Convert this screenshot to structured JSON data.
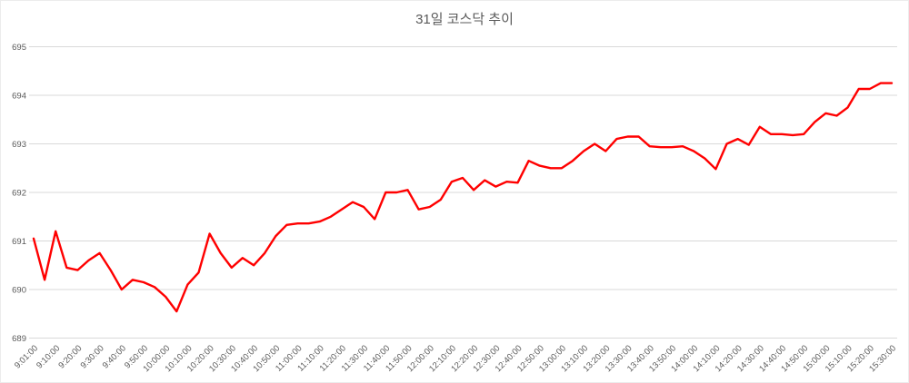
{
  "chart_data": {
    "type": "line",
    "title": "31일 코스닥 추이",
    "xlabel": "",
    "ylabel": "",
    "ylim": [
      689,
      695
    ],
    "y_ticks": [
      689,
      690,
      691,
      692,
      693,
      694,
      695
    ],
    "grid": "horizontal",
    "legend": "none",
    "gridline_color": "#d9d9d9",
    "axis_label_color": "#595959",
    "title_color": "#595959",
    "line_width": 2.4,
    "x_tick_labels": [
      "9:01:00",
      "9:10:00",
      "9:20:00",
      "9:30:00",
      "9:40:00",
      "9:50:00",
      "10:00:00",
      "10:10:00",
      "10:20:00",
      "10:30:00",
      "10:40:00",
      "10:50:00",
      "11:00:00",
      "11:10:00",
      "11:20:00",
      "11:30:00",
      "11:40:00",
      "11:50:00",
      "12:00:00",
      "12:10:00",
      "12:20:00",
      "12:30:00",
      "12:40:00",
      "12:50:00",
      "13:00:00",
      "13:10:00",
      "13:20:00",
      "13:30:00",
      "13:40:00",
      "13:50:00",
      "14:00:00",
      "14:10:00",
      "14:20:00",
      "14:30:00",
      "14:40:00",
      "14:50:00",
      "15:00:00",
      "15:10:00",
      "15:20:00",
      "15:30:00"
    ],
    "x": [
      "9:01:00",
      "9:05:00",
      "9:10:00",
      "9:15:00",
      "9:20:00",
      "9:25:00",
      "9:30:00",
      "9:35:00",
      "9:40:00",
      "9:45:00",
      "9:50:00",
      "9:55:00",
      "10:00:00",
      "10:05:00",
      "10:10:00",
      "10:15:00",
      "10:20:00",
      "10:25:00",
      "10:30:00",
      "10:35:00",
      "10:40:00",
      "10:45:00",
      "10:50:00",
      "10:55:00",
      "11:00:00",
      "11:05:00",
      "11:10:00",
      "11:15:00",
      "11:20:00",
      "11:25:00",
      "11:30:00",
      "11:35:00",
      "11:40:00",
      "11:45:00",
      "11:50:00",
      "11:55:00",
      "12:00:00",
      "12:05:00",
      "12:10:00",
      "12:15:00",
      "12:20:00",
      "12:25:00",
      "12:30:00",
      "12:35:00",
      "12:40:00",
      "12:45:00",
      "12:50:00",
      "12:55:00",
      "13:00:00",
      "13:05:00",
      "13:10:00",
      "13:15:00",
      "13:20:00",
      "13:25:00",
      "13:30:00",
      "13:35:00",
      "13:40:00",
      "13:45:00",
      "13:50:00",
      "13:55:00",
      "14:00:00",
      "14:05:00",
      "14:10:00",
      "14:15:00",
      "14:20:00",
      "14:25:00",
      "14:30:00",
      "14:35:00",
      "14:40:00",
      "14:45:00",
      "14:50:00",
      "14:55:00",
      "15:00:00",
      "15:05:00",
      "15:10:00",
      "15:15:00",
      "15:20:00",
      "15:25:00",
      "15:30:00"
    ],
    "series": [
      {
        "name": "코스닥",
        "color": "#ff0000",
        "values": [
          691.05,
          690.2,
          691.2,
          690.45,
          690.4,
          690.6,
          690.75,
          690.4,
          690.0,
          690.2,
          690.15,
          690.05,
          689.85,
          689.55,
          690.1,
          690.35,
          691.15,
          690.75,
          690.45,
          690.65,
          690.5,
          690.75,
          691.1,
          691.33,
          691.36,
          691.36,
          691.4,
          691.5,
          691.65,
          691.8,
          691.7,
          691.45,
          692.0,
          692.0,
          692.05,
          691.65,
          691.7,
          691.85,
          692.22,
          692.3,
          692.05,
          692.25,
          692.12,
          692.22,
          692.2,
          692.65,
          692.55,
          692.5,
          692.5,
          692.65,
          692.85,
          693.0,
          692.85,
          693.1,
          693.15,
          693.15,
          692.95,
          692.93,
          692.93,
          692.95,
          692.85,
          692.7,
          692.48,
          693.0,
          693.1,
          692.98,
          693.35,
          693.2,
          693.2,
          693.18,
          693.2,
          693.45,
          693.63,
          693.58,
          693.75,
          694.13,
          694.13,
          694.25,
          694.25
        ]
      }
    ]
  }
}
